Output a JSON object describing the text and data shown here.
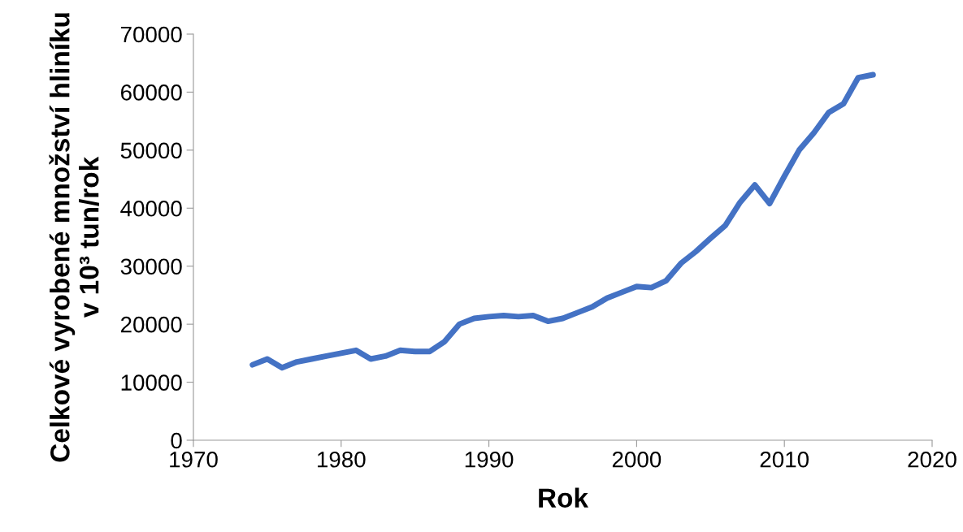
{
  "chart_data": {
    "type": "line",
    "xlabel": "Rok",
    "ylabel": "Celkové vyrobené množství hliníku\nv 10³ tun/rok",
    "x": [
      1974,
      1975,
      1976,
      1977,
      1978,
      1979,
      1980,
      1981,
      1982,
      1983,
      1984,
      1985,
      1986,
      1987,
      1988,
      1989,
      1990,
      1991,
      1992,
      1993,
      1994,
      1995,
      1996,
      1997,
      1998,
      1999,
      2000,
      2001,
      2002,
      2003,
      2004,
      2005,
      2006,
      2007,
      2008,
      2009,
      2010,
      2011,
      2012,
      2013,
      2014,
      2015,
      2016
    ],
    "series": [
      {
        "color": "#4472c4",
        "values": [
          13000,
          14000,
          12500,
          13500,
          14000,
          14500,
          15000,
          15500,
          14000,
          14500,
          15500,
          15300,
          15300,
          17000,
          20000,
          21000,
          21300,
          21500,
          21300,
          21500,
          20500,
          21000,
          22000,
          23000,
          24500,
          25500,
          26500,
          26300,
          27500,
          30500,
          32500,
          34800,
          37000,
          41000,
          44000,
          40800,
          45500,
          50000,
          53000,
          56500,
          58000,
          62500,
          63000
        ]
      }
    ],
    "xlim": [
      1970,
      2020
    ],
    "xticks": [
      1970,
      1980,
      1990,
      2000,
      2010,
      2020
    ],
    "ylim": [
      0,
      70000
    ],
    "yticks": [
      0,
      10000,
      20000,
      30000,
      40000,
      50000,
      60000,
      70000
    ],
    "grid": false,
    "legend": false,
    "marker": "none",
    "line_style": "solid"
  }
}
